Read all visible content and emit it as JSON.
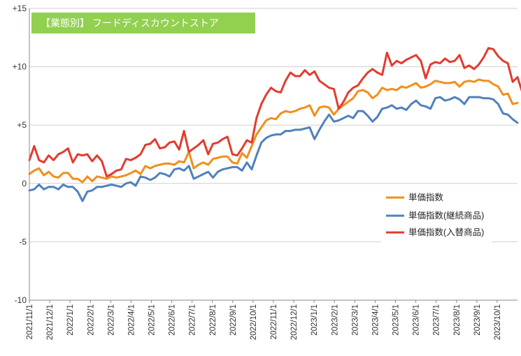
{
  "chart_data": {
    "type": "line",
    "title": "【業態別】 フードディスカウントストア",
    "title_box_color": "#92D050",
    "ylim": [
      -10,
      15
    ],
    "y_ticks": [
      "+15",
      "+10",
      "+5",
      "0",
      "-5",
      "-10"
    ],
    "y_tick_values": [
      15,
      10,
      5,
      0,
      -5,
      -10
    ],
    "x_ticks": [
      "2021/11/1",
      "2021/12/1",
      "2022/1/1",
      "2022/2/1",
      "2022/3/1",
      "2022/4/1",
      "2022/5/1",
      "2022/6/1",
      "2022/7/1",
      "2022/8/1",
      "2022/9/1",
      "2022/10/1",
      "2022/11/1",
      "2022/12/1",
      "2023/1/1",
      "2023/2/1",
      "2023/3/1",
      "2023/4/1",
      "2023/5/1",
      "2023/6/1",
      "2023/7/1",
      "2023/8/1",
      "2023/9/1",
      "2023/10/1"
    ],
    "grid": true,
    "legend_position": "right-middle",
    "series": [
      {
        "name": "単価指数",
        "color": "#F28E1C",
        "values": [
          0.8,
          1.1,
          1.3,
          0.7,
          1.0,
          0.6,
          0.5,
          0.9,
          0.9,
          0.4,
          0.4,
          0.1,
          0.6,
          0.2,
          0.6,
          0.5,
          0.4,
          0.6,
          0.5,
          0.6,
          0.7,
          0.9,
          1.1,
          0.8,
          1.5,
          1.3,
          1.5,
          1.6,
          1.7,
          1.7,
          1.6,
          1.9,
          1.8,
          2.7,
          1.3,
          1.6,
          1.8,
          1.6,
          2.1,
          2.2,
          2.3,
          2.3,
          1.8,
          1.7,
          2.6,
          2.2,
          3.2,
          4.2,
          4.8,
          5.4,
          5.6,
          5.5,
          6.0,
          6.2,
          6.1,
          6.2,
          6.4,
          6.5,
          6.7,
          5.8,
          6.5,
          6.6,
          6.5,
          5.9,
          6.4,
          6.7,
          7.0,
          7.3,
          7.9,
          8.0,
          7.8,
          7.3,
          7.6,
          8.2,
          8.0,
          8.1,
          8.0,
          8.3,
          8.2,
          8.4,
          8.6,
          8.2,
          8.3,
          8.5,
          8.8,
          8.7,
          8.6,
          8.6,
          8.7,
          8.3,
          8.7,
          8.8,
          8.7,
          8.9,
          8.8,
          8.8,
          8.5,
          8.3,
          7.6,
          7.7,
          6.8,
          6.9
        ]
      },
      {
        "name": "単価指数(継続商品)",
        "color": "#4F81BD",
        "values": [
          -0.6,
          -0.5,
          -0.1,
          -0.5,
          -0.3,
          -0.3,
          -0.5,
          -0.1,
          -0.3,
          -0.3,
          -0.7,
          -1.5,
          -0.7,
          -0.6,
          -0.3,
          -0.3,
          -0.2,
          -0.1,
          -0.2,
          -0.3,
          0.0,
          0.1,
          -0.2,
          0.6,
          0.5,
          0.3,
          0.5,
          0.9,
          0.8,
          0.6,
          1.2,
          1.3,
          1.1,
          1.5,
          0.4,
          0.6,
          0.8,
          1.0,
          0.5,
          1.0,
          1.2,
          1.3,
          1.4,
          1.4,
          1.1,
          1.8,
          1.2,
          2.4,
          3.5,
          3.9,
          4.1,
          4.2,
          4.2,
          4.5,
          4.5,
          4.6,
          4.6,
          4.7,
          4.8,
          3.8,
          4.6,
          5.3,
          5.9,
          5.3,
          5.4,
          5.6,
          5.8,
          5.6,
          6.2,
          6.2,
          5.8,
          5.3,
          5.7,
          6.4,
          6.5,
          6.7,
          6.4,
          6.5,
          6.3,
          6.8,
          7.1,
          6.7,
          6.6,
          6.4,
          7.3,
          7.4,
          7.1,
          7.2,
          7.4,
          7.2,
          6.8,
          7.4,
          7.4,
          7.4,
          7.3,
          7.3,
          7.2,
          6.8,
          6.0,
          5.9,
          5.5,
          5.2
        ]
      },
      {
        "name": "単価指数(入替商品)",
        "color": "#E33B2E",
        "values": [
          2.0,
          3.2,
          2.0,
          1.8,
          2.4,
          2.0,
          2.5,
          2.7,
          3.0,
          1.8,
          2.5,
          2.4,
          2.5,
          1.9,
          2.4,
          1.9,
          0.6,
          0.8,
          1.1,
          1.2,
          2.1,
          2.0,
          2.2,
          2.5,
          3.3,
          3.4,
          3.8,
          3.0,
          3.1,
          3.5,
          3.6,
          2.9,
          4.5,
          2.7,
          3.0,
          3.3,
          3.7,
          2.5,
          3.4,
          3.5,
          3.8,
          4.0,
          2.5,
          2.4,
          3.0,
          3.7,
          3.5,
          5.6,
          6.8,
          7.6,
          8.2,
          7.9,
          7.8,
          8.8,
          9.5,
          9.2,
          9.2,
          9.7,
          9.3,
          9.6,
          8.8,
          8.5,
          8.2,
          8.1,
          6.4,
          7.0,
          7.8,
          8.2,
          8.4,
          9.0,
          9.5,
          9.8,
          9.5,
          9.3,
          11.2,
          10.1,
          10.5,
          10.3,
          10.6,
          10.8,
          11.0,
          10.5,
          9.0,
          10.2,
          10.4,
          10.3,
          10.7,
          10.4,
          10.5,
          11.0,
          9.9,
          10.1,
          9.8,
          10.2,
          10.8,
          11.6,
          11.5,
          10.9,
          10.5,
          10.3,
          8.7,
          9.1,
          7.8,
          8.7
        ]
      }
    ]
  }
}
